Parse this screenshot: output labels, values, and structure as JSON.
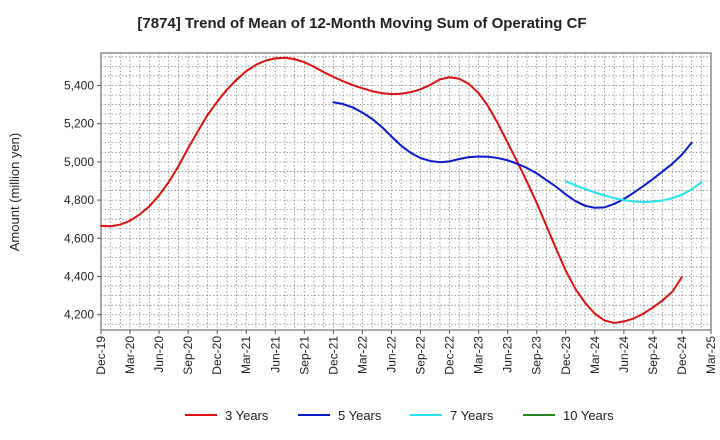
{
  "chart_data": {
    "type": "line",
    "title": "[7874]  Trend of Mean of 12-Month Moving Sum of Operating CF",
    "xlabel": "",
    "ylabel": "Amount (million yen)",
    "ylim": [
      4120,
      5570
    ],
    "yticks": [
      4200,
      4400,
      4600,
      4800,
      5000,
      5200,
      5400
    ],
    "ytick_labels": [
      "4,200",
      "4,400",
      "4,600",
      "4,800",
      "5,000",
      "5,200",
      "5,400"
    ],
    "x_start": "Dec-19",
    "x_end": "Mar-25",
    "x_tick_labels": [
      "Dec-19",
      "Mar-20",
      "Jun-20",
      "Sep-20",
      "Dec-20",
      "Mar-21",
      "Jun-21",
      "Sep-21",
      "Dec-21",
      "Mar-22",
      "Jun-22",
      "Sep-22",
      "Dec-22",
      "Mar-23",
      "Jun-23",
      "Sep-23",
      "Dec-23",
      "Mar-24",
      "Jun-24",
      "Sep-24",
      "Dec-24",
      "Mar-25"
    ],
    "grid": true,
    "legend_position": "bottom",
    "series": [
      {
        "name": "3 Years",
        "color": "#dd1111",
        "points": [
          [
            0,
            4665
          ],
          [
            1,
            4663
          ],
          [
            2,
            4672
          ],
          [
            3,
            4692
          ],
          [
            4,
            4725
          ],
          [
            5,
            4768
          ],
          [
            6,
            4825
          ],
          [
            7,
            4895
          ],
          [
            8,
            4978
          ],
          [
            9,
            5072
          ],
          [
            10,
            5160
          ],
          [
            11,
            5245
          ],
          [
            12,
            5315
          ],
          [
            13,
            5378
          ],
          [
            14,
            5430
          ],
          [
            15,
            5475
          ],
          [
            16,
            5508
          ],
          [
            17,
            5530
          ],
          [
            18,
            5542
          ],
          [
            19,
            5545
          ],
          [
            20,
            5538
          ],
          [
            21,
            5522
          ],
          [
            22,
            5498
          ],
          [
            23,
            5470
          ],
          [
            24,
            5445
          ],
          [
            25,
            5422
          ],
          [
            26,
            5402
          ],
          [
            27,
            5385
          ],
          [
            28,
            5370
          ],
          [
            29,
            5360
          ],
          [
            30,
            5355
          ],
          [
            31,
            5357
          ],
          [
            32,
            5365
          ],
          [
            33,
            5380
          ],
          [
            34,
            5403
          ],
          [
            35,
            5432
          ],
          [
            36,
            5443
          ],
          [
            37,
            5435
          ],
          [
            38,
            5408
          ],
          [
            39,
            5360
          ],
          [
            40,
            5290
          ],
          [
            41,
            5200
          ],
          [
            42,
            5100
          ],
          [
            43,
            5000
          ],
          [
            44,
            4895
          ],
          [
            45,
            4785
          ],
          [
            46,
            4665
          ],
          [
            47,
            4545
          ],
          [
            48,
            4430
          ],
          [
            49,
            4335
          ],
          [
            50,
            4262
          ],
          [
            51,
            4205
          ],
          [
            52,
            4170
          ],
          [
            53,
            4157
          ],
          [
            54,
            4165
          ],
          [
            55,
            4180
          ],
          [
            56,
            4205
          ],
          [
            57,
            4238
          ],
          [
            58,
            4275
          ],
          [
            59,
            4320
          ],
          [
            60,
            4397
          ]
        ]
      },
      {
        "name": "5 Years",
        "color": "#0a1acc",
        "points": [
          [
            24,
            5312
          ],
          [
            25,
            5303
          ],
          [
            26,
            5285
          ],
          [
            27,
            5258
          ],
          [
            28,
            5225
          ],
          [
            29,
            5183
          ],
          [
            30,
            5133
          ],
          [
            31,
            5085
          ],
          [
            32,
            5047
          ],
          [
            33,
            5020
          ],
          [
            34,
            5005
          ],
          [
            35,
            4998
          ],
          [
            36,
            5003
          ],
          [
            37,
            5015
          ],
          [
            38,
            5025
          ],
          [
            39,
            5028
          ],
          [
            40,
            5027
          ],
          [
            41,
            5020
          ],
          [
            42,
            5008
          ],
          [
            43,
            4990
          ],
          [
            44,
            4968
          ],
          [
            45,
            4940
          ],
          [
            46,
            4905
          ],
          [
            47,
            4870
          ],
          [
            48,
            4830
          ],
          [
            49,
            4795
          ],
          [
            50,
            4770
          ],
          [
            51,
            4760
          ],
          [
            52,
            4762
          ],
          [
            53,
            4780
          ],
          [
            54,
            4805
          ],
          [
            55,
            4838
          ],
          [
            56,
            4873
          ],
          [
            57,
            4910
          ],
          [
            58,
            4950
          ],
          [
            59,
            4990
          ],
          [
            60,
            5038
          ],
          [
            61,
            5100
          ]
        ]
      },
      {
        "name": "7 Years",
        "color": "#22e5ee",
        "points": [
          [
            48,
            4898
          ],
          [
            49,
            4878
          ],
          [
            50,
            4858
          ],
          [
            51,
            4840
          ],
          [
            52,
            4824
          ],
          [
            53,
            4810
          ],
          [
            54,
            4800
          ],
          [
            55,
            4793
          ],
          [
            56,
            4790
          ],
          [
            57,
            4792
          ],
          [
            58,
            4798
          ],
          [
            59,
            4810
          ],
          [
            60,
            4828
          ],
          [
            61,
            4856
          ],
          [
            62,
            4893
          ]
        ]
      },
      {
        "name": "10 Years",
        "color": "#228822",
        "points": []
      }
    ]
  }
}
